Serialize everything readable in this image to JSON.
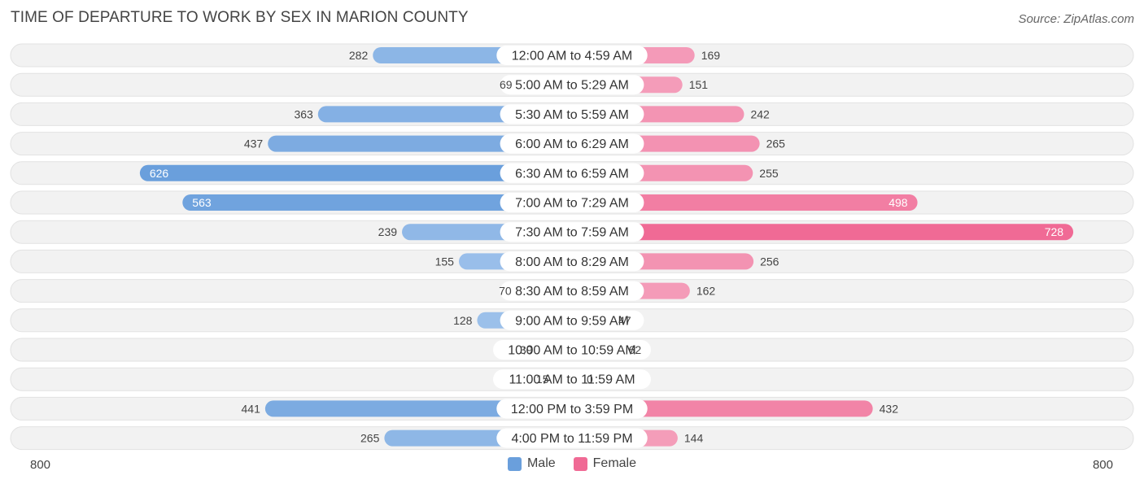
{
  "title": "TIME OF DEPARTURE TO WORK BY SEX IN MARION COUNTY",
  "source": "Source: ZipAtlas.com",
  "colors": {
    "male": "#6a9fdc",
    "male_light": "#a8c8ee",
    "female": "#f06a95",
    "female_light": "#f5a9c2",
    "row_bg": "#f2f2f2",
    "row_border": "#e2e2e2"
  },
  "chart_data": {
    "type": "bar",
    "orientation": "horizontal-diverging",
    "categories": [
      "12:00 AM to 4:59 AM",
      "5:00 AM to 5:29 AM",
      "5:30 AM to 5:59 AM",
      "6:00 AM to 6:29 AM",
      "6:30 AM to 6:59 AM",
      "7:00 AM to 7:29 AM",
      "7:30 AM to 7:59 AM",
      "8:00 AM to 8:29 AM",
      "8:30 AM to 8:59 AM",
      "9:00 AM to 9:59 AM",
      "10:00 AM to 10:59 AM",
      "11:00 AM to 11:59 AM",
      "12:00 PM to 3:59 PM",
      "4:00 PM to 11:59 PM"
    ],
    "series": [
      {
        "name": "Male",
        "values": [
          282,
          69,
          363,
          437,
          626,
          563,
          239,
          155,
          70,
          128,
          39,
          15,
          441,
          265
        ]
      },
      {
        "name": "Female",
        "values": [
          169,
          151,
          242,
          265,
          255,
          498,
          728,
          256,
          162,
          47,
          62,
          0,
          432,
          144
        ]
      }
    ],
    "xlim": [
      -800,
      800
    ],
    "axis_labels": {
      "left": "800",
      "right": "800"
    },
    "legend": "bottom-center"
  }
}
